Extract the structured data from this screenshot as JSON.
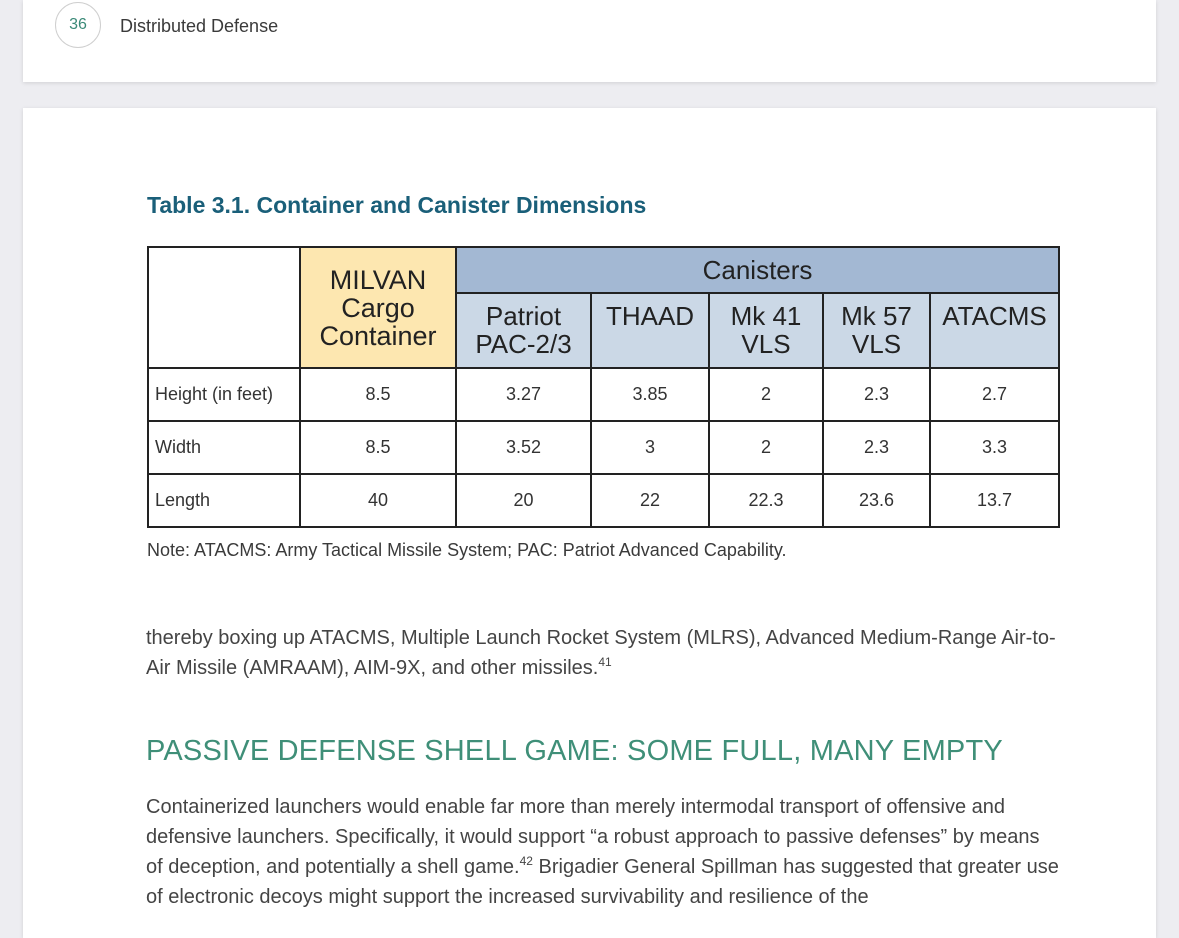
{
  "header": {
    "page_number": "36",
    "book_title": "Distributed Defense"
  },
  "table": {
    "title": "Table 3.1.  Container and Canister Dimensions",
    "milvan_label": "MILVAN Cargo Container",
    "milvan_lines": [
      "MILVAN",
      "Cargo",
      "Container"
    ],
    "group_label": "Canisters",
    "columns": [
      {
        "lines": [
          "Patriot",
          "PAC-2/3"
        ]
      },
      {
        "lines": [
          "THAAD"
        ]
      },
      {
        "lines": [
          "Mk 41",
          "VLS"
        ]
      },
      {
        "lines": [
          "Mk 57",
          "VLS"
        ]
      },
      {
        "lines": [
          "ATACMS"
        ]
      }
    ],
    "rows": [
      {
        "label": "Height (in feet)",
        "values": [
          "8.5",
          "3.27",
          "3.85",
          "2",
          "2.3",
          "2.7"
        ]
      },
      {
        "label": "Width",
        "values": [
          "8.5",
          "3.52",
          "3",
          "2",
          "2.3",
          "3.3"
        ]
      },
      {
        "label": "Length",
        "values": [
          "40",
          "20",
          "22",
          "22.3",
          "23.6",
          "13.7"
        ]
      }
    ],
    "note": "Note: ATACMS: Army Tactical Missile System; PAC: Patriot Advanced Capability."
  },
  "body": {
    "para1_text": "thereby boxing up ATACMS, Multiple Launch Rocket System (MLRS), Advanced Medium-Range Air-to-Air Missile (AMRAAM), AIM-9X, and other missiles.",
    "para1_footnote": "41",
    "section_heading": "PASSIVE DEFENSE SHELL GAME: SOME FULL, MANY EMPTY",
    "para2_part1": "Containerized launchers would enable far more than merely intermodal transport of offensive and defensive launchers. Specifically, it would support “a robust approach to passive defenses” by means of deception, and potentially a shell game.",
    "para2_footnote": "42",
    "para2_part2": " Brigadier General Spillman has suggested that greater use of electronic decoys might support the increased survivability and resilience of the"
  }
}
